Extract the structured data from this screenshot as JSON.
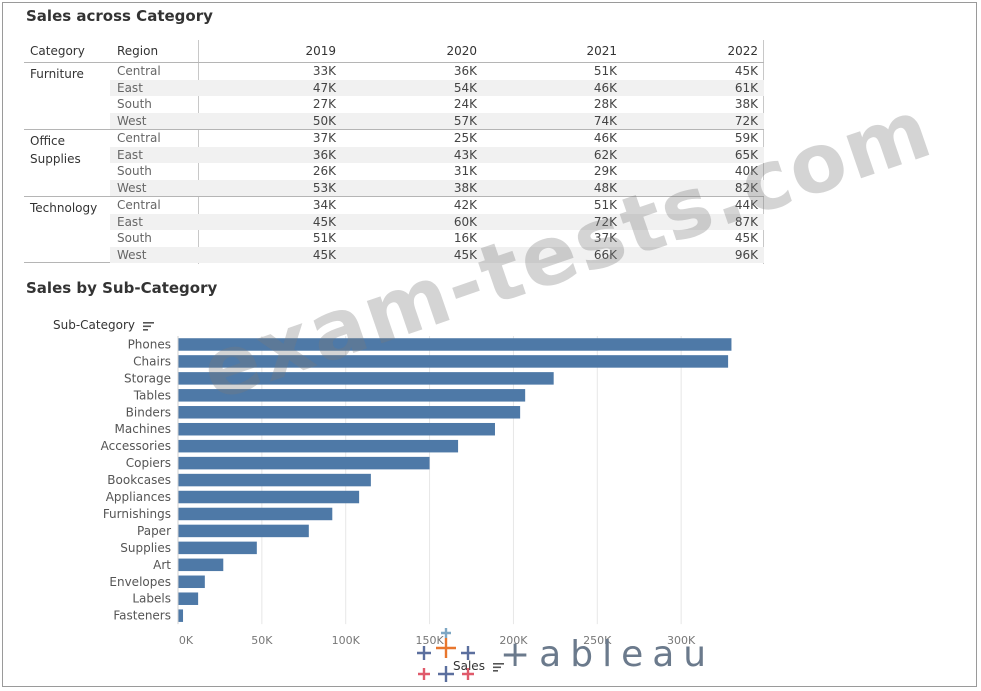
{
  "table_title": "Sales across Category",
  "chart_title": "Sales by Sub-Category",
  "table": {
    "headers": {
      "category": "Category",
      "region": "Region",
      "years": [
        "2019",
        "2020",
        "2021",
        "2022"
      ]
    },
    "groups": [
      {
        "category": "Furniture",
        "rows": [
          {
            "region": "Central",
            "values": [
              "33K",
              "36K",
              "51K",
              "45K"
            ]
          },
          {
            "region": "East",
            "values": [
              "47K",
              "54K",
              "46K",
              "61K"
            ]
          },
          {
            "region": "South",
            "values": [
              "27K",
              "24K",
              "28K",
              "38K"
            ]
          },
          {
            "region": "West",
            "values": [
              "50K",
              "57K",
              "74K",
              "72K"
            ]
          }
        ]
      },
      {
        "category": "Office Supplies",
        "rows": [
          {
            "region": "Central",
            "values": [
              "37K",
              "25K",
              "46K",
              "59K"
            ]
          },
          {
            "region": "East",
            "values": [
              "36K",
              "43K",
              "62K",
              "65K"
            ]
          },
          {
            "region": "South",
            "values": [
              "26K",
              "31K",
              "29K",
              "40K"
            ]
          },
          {
            "region": "West",
            "values": [
              "53K",
              "38K",
              "48K",
              "82K"
            ]
          }
        ]
      },
      {
        "category": "Technology",
        "rows": [
          {
            "region": "Central",
            "values": [
              "34K",
              "42K",
              "51K",
              "44K"
            ]
          },
          {
            "region": "East",
            "values": [
              "45K",
              "60K",
              "72K",
              "87K"
            ]
          },
          {
            "region": "South",
            "values": [
              "51K",
              "16K",
              "37K",
              "45K"
            ]
          },
          {
            "region": "West",
            "values": [
              "45K",
              "45K",
              "66K",
              "96K"
            ]
          }
        ]
      }
    ]
  },
  "chart_data": {
    "type": "bar",
    "orientation": "horizontal",
    "title": "Sales by Sub-Category",
    "ylabel": "Sub-Category",
    "xlabel": "Sales",
    "categories": [
      "Phones",
      "Chairs",
      "Storage",
      "Tables",
      "Binders",
      "Machines",
      "Accessories",
      "Copiers",
      "Bookcases",
      "Appliances",
      "Furnishings",
      "Paper",
      "Supplies",
      "Art",
      "Envelopes",
      "Labels",
      "Fasteners"
    ],
    "values": [
      330000,
      328000,
      224000,
      207000,
      204000,
      189000,
      167000,
      150000,
      115000,
      108000,
      92000,
      78000,
      47000,
      27000,
      16000,
      12000,
      3000
    ],
    "xticks": [
      "0K",
      "50K",
      "100K",
      "150K",
      "200K",
      "250K",
      "300K"
    ],
    "xlim": [
      0,
      350000
    ],
    "grid": true,
    "bar_color": "#4e79a7"
  },
  "watermark": "exam-tests.com",
  "logo_text": "+ableau"
}
